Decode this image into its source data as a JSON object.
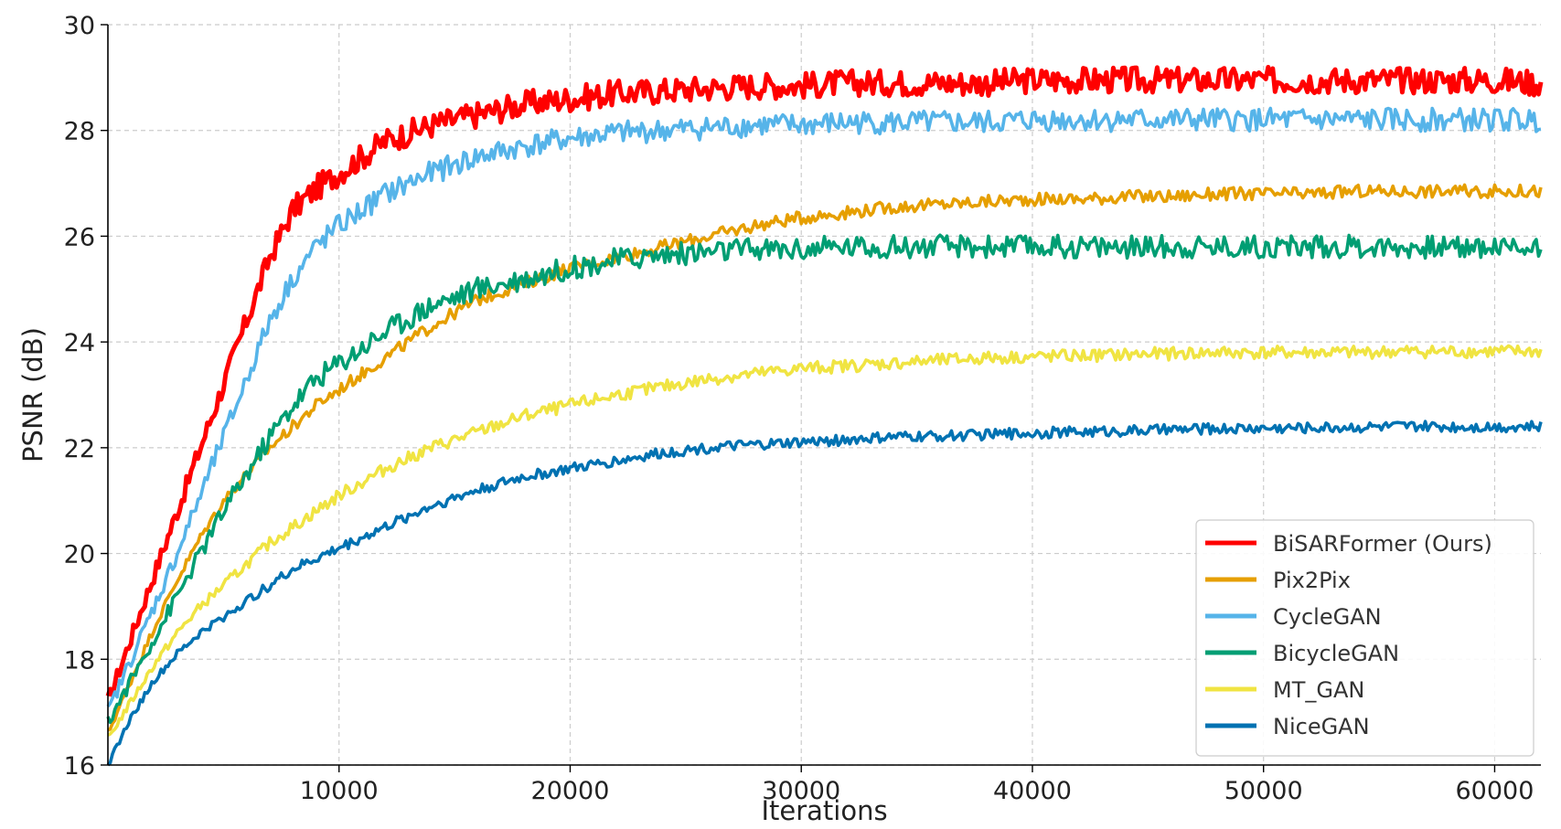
{
  "chart_data": {
    "type": "line",
    "title": "",
    "xlabel": "Iterations",
    "ylabel": "PSNR (dB)",
    "xlim": [
      0,
      62000
    ],
    "ylim": [
      16,
      30
    ],
    "x_ticks": [
      10000,
      20000,
      30000,
      40000,
      50000,
      60000
    ],
    "y_ticks": [
      16,
      18,
      20,
      22,
      24,
      26,
      28,
      30
    ],
    "grid": true,
    "legend_position": "lower-right",
    "x": [
      0,
      1000,
      2000,
      3000,
      4000,
      5000,
      6000,
      7000,
      8000,
      9000,
      10000,
      12000,
      14000,
      16000,
      18000,
      20000,
      22000,
      24000,
      26000,
      28000,
      30000,
      32000,
      34000,
      36000,
      38000,
      40000,
      42000,
      44000,
      46000,
      48000,
      50000,
      52000,
      54000,
      56000,
      58000,
      60000,
      62000
    ],
    "series": [
      {
        "name": "BiSARFormer (Ours)",
        "color": "#ff0000",
        "amp": 0.25,
        "values": [
          17.2,
          18.4,
          19.6,
          20.8,
          22.0,
          23.2,
          24.4,
          25.6,
          26.5,
          26.9,
          27.2,
          27.8,
          28.1,
          28.3,
          28.5,
          28.6,
          28.7,
          28.75,
          28.8,
          28.85,
          28.85,
          28.9,
          28.9,
          28.9,
          28.9,
          28.95,
          28.95,
          28.95,
          28.95,
          28.95,
          28.95,
          28.95,
          28.95,
          28.95,
          28.95,
          28.95,
          28.9
        ]
      },
      {
        "name": "Pix2Pix",
        "color": "#e69f00",
        "amp": 0.12,
        "values": [
          16.6,
          17.6,
          18.6,
          19.5,
          20.3,
          21.0,
          21.5,
          22.0,
          22.4,
          22.8,
          23.1,
          23.7,
          24.3,
          24.8,
          25.1,
          25.4,
          25.6,
          25.8,
          26.0,
          26.2,
          26.35,
          26.45,
          26.55,
          26.6,
          26.65,
          26.7,
          26.7,
          26.75,
          26.75,
          26.8,
          26.8,
          26.8,
          26.85,
          26.85,
          26.85,
          26.85,
          26.85
        ]
      },
      {
        "name": "CycleGAN",
        "color": "#56b4e9",
        "amp": 0.22,
        "values": [
          17.0,
          18.0,
          19.0,
          20.0,
          21.1,
          22.2,
          23.3,
          24.4,
          25.2,
          25.8,
          26.2,
          26.8,
          27.2,
          27.5,
          27.7,
          27.85,
          27.95,
          28.0,
          28.05,
          28.1,
          28.1,
          28.15,
          28.15,
          28.15,
          28.15,
          28.2,
          28.2,
          28.2,
          28.2,
          28.2,
          28.2,
          28.2,
          28.2,
          28.2,
          28.2,
          28.2,
          28.2
        ]
      },
      {
        "name": "BicycleGAN",
        "color": "#009e73",
        "amp": 0.22,
        "values": [
          16.8,
          17.6,
          18.4,
          19.2,
          20.0,
          20.8,
          21.5,
          22.2,
          22.8,
          23.3,
          23.6,
          24.2,
          24.7,
          25.0,
          25.2,
          25.4,
          25.55,
          25.65,
          25.7,
          25.75,
          25.75,
          25.8,
          25.8,
          25.8,
          25.8,
          25.8,
          25.8,
          25.8,
          25.8,
          25.8,
          25.8,
          25.8,
          25.8,
          25.8,
          25.8,
          25.8,
          25.8
        ]
      },
      {
        "name": "MT_GAN",
        "color": "#f0e442",
        "amp": 0.12,
        "values": [
          16.5,
          17.2,
          17.9,
          18.5,
          19.0,
          19.4,
          19.8,
          20.2,
          20.5,
          20.8,
          21.1,
          21.6,
          22.0,
          22.3,
          22.6,
          22.8,
          23.0,
          23.15,
          23.3,
          23.4,
          23.5,
          23.55,
          23.6,
          23.65,
          23.7,
          23.72,
          23.74,
          23.76,
          23.78,
          23.8,
          23.8,
          23.8,
          23.8,
          23.82,
          23.82,
          23.82,
          23.82
        ]
      },
      {
        "name": "NiceGAN",
        "color": "#0072b2",
        "amp": 0.1,
        "values": [
          16.0,
          16.9,
          17.6,
          18.1,
          18.5,
          18.8,
          19.1,
          19.4,
          19.7,
          19.9,
          20.1,
          20.5,
          20.9,
          21.2,
          21.45,
          21.6,
          21.75,
          21.9,
          22.0,
          22.05,
          22.1,
          22.15,
          22.2,
          22.22,
          22.25,
          22.28,
          22.3,
          22.32,
          22.34,
          22.36,
          22.37,
          22.38,
          22.39,
          22.4,
          22.4,
          22.4,
          22.4
        ]
      }
    ]
  }
}
